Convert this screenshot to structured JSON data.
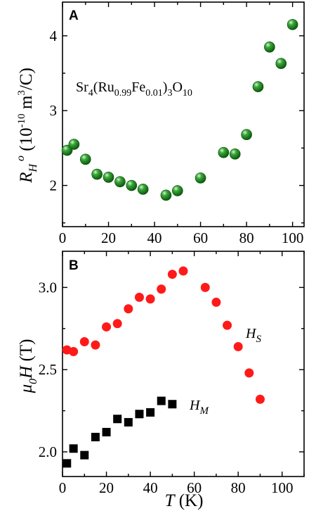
{
  "colors": {
    "green": "#1e8a1e",
    "red": "#ff1a1a",
    "black": "#000000"
  },
  "chart_data": [
    {
      "panel": "A",
      "type": "scatter",
      "annotation": "Sr4(Ru0.99Fe0.01)3O10",
      "ylabel": "R_H^o (10^-10 m^3/C)",
      "xlim": [
        0,
        105
      ],
      "ylim": [
        1.45,
        4.45
      ],
      "xticks": [
        0,
        20,
        40,
        60,
        80,
        100
      ],
      "yticks": [
        2,
        3,
        4
      ],
      "series": [
        {
          "marker": "sphere-green",
          "x": [
            2,
            5,
            10,
            15,
            20,
            25,
            30,
            35,
            45,
            50,
            60,
            70,
            75,
            80,
            85,
            90,
            95,
            100
          ],
          "y": [
            2.47,
            2.55,
            2.35,
            2.15,
            2.11,
            2.05,
            2.0,
            1.95,
            1.87,
            1.93,
            2.1,
            2.44,
            2.42,
            2.68,
            3.32,
            3.85,
            3.63,
            4.15
          ]
        }
      ]
    },
    {
      "panel": "B",
      "type": "scatter",
      "xlabel": "T (K)",
      "ylabel": "μ0H (T)",
      "xlim": [
        0,
        110
      ],
      "ylim": [
        1.85,
        3.22
      ],
      "xticks": [
        0,
        20,
        40,
        60,
        80,
        100
      ],
      "yticks": [
        2.0,
        2.5,
        3.0
      ],
      "series": [
        {
          "name": "HS",
          "marker": "circle-red",
          "x": [
            2,
            5,
            10,
            15,
            20,
            25,
            30,
            35,
            40,
            45,
            50,
            55,
            65,
            70,
            75,
            80,
            85,
            90
          ],
          "y": [
            2.62,
            2.61,
            2.67,
            2.65,
            2.76,
            2.78,
            2.87,
            2.94,
            2.93,
            2.99,
            3.08,
            3.1,
            3.0,
            2.91,
            2.77,
            2.64,
            2.48,
            2.32
          ]
        },
        {
          "name": "HM",
          "marker": "square-black",
          "x": [
            2,
            5,
            10,
            15,
            20,
            25,
            30,
            35,
            40,
            45,
            50
          ],
          "y": [
            1.93,
            2.02,
            1.98,
            2.09,
            2.12,
            2.2,
            2.18,
            2.23,
            2.24,
            2.31,
            2.29
          ]
        }
      ]
    }
  ]
}
